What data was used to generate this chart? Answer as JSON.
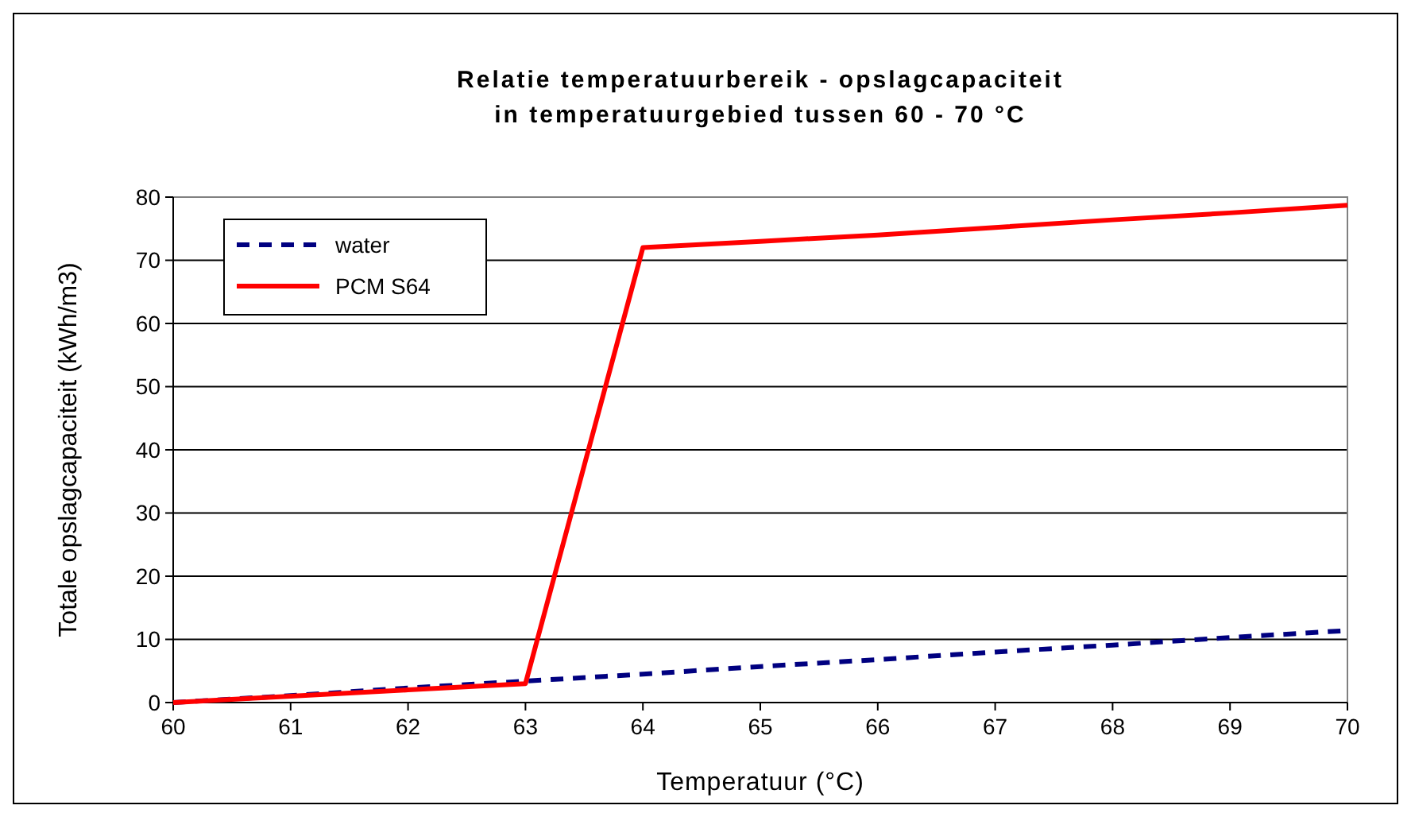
{
  "chart_data": {
    "type": "line",
    "title": "Relatie temperatuurbereik - opslagcapaciteit\nin temperatuurgebied tussen 60 - 70 °C",
    "xlabel": "Temperatuur (°C)",
    "ylabel": "Totale opslagcapaciteit (kWh/m3)",
    "x": [
      60,
      61,
      62,
      63,
      64,
      65,
      66,
      67,
      68,
      69,
      70
    ],
    "series": [
      {
        "name": "water",
        "color": "#000080",
        "line_style": "dashed",
        "values": [
          0,
          1.1,
          2.3,
          3.4,
          4.5,
          5.7,
          6.8,
          8,
          9.1,
          10.3,
          11.4
        ]
      },
      {
        "name": "PCM S64",
        "color": "#ff0000",
        "line_style": "solid",
        "values": [
          0,
          1,
          2,
          3,
          72,
          73,
          74,
          75.2,
          76.4,
          77.5,
          78.7
        ]
      }
    ],
    "xlim": [
      60,
      70
    ],
    "xticks": [
      60,
      61,
      62,
      63,
      64,
      65,
      66,
      67,
      68,
      69,
      70
    ],
    "ylim": [
      0,
      80
    ],
    "yticks": [
      0,
      10,
      20,
      30,
      40,
      50,
      60,
      70,
      80
    ],
    "grid": "y",
    "legend": "top left"
  }
}
